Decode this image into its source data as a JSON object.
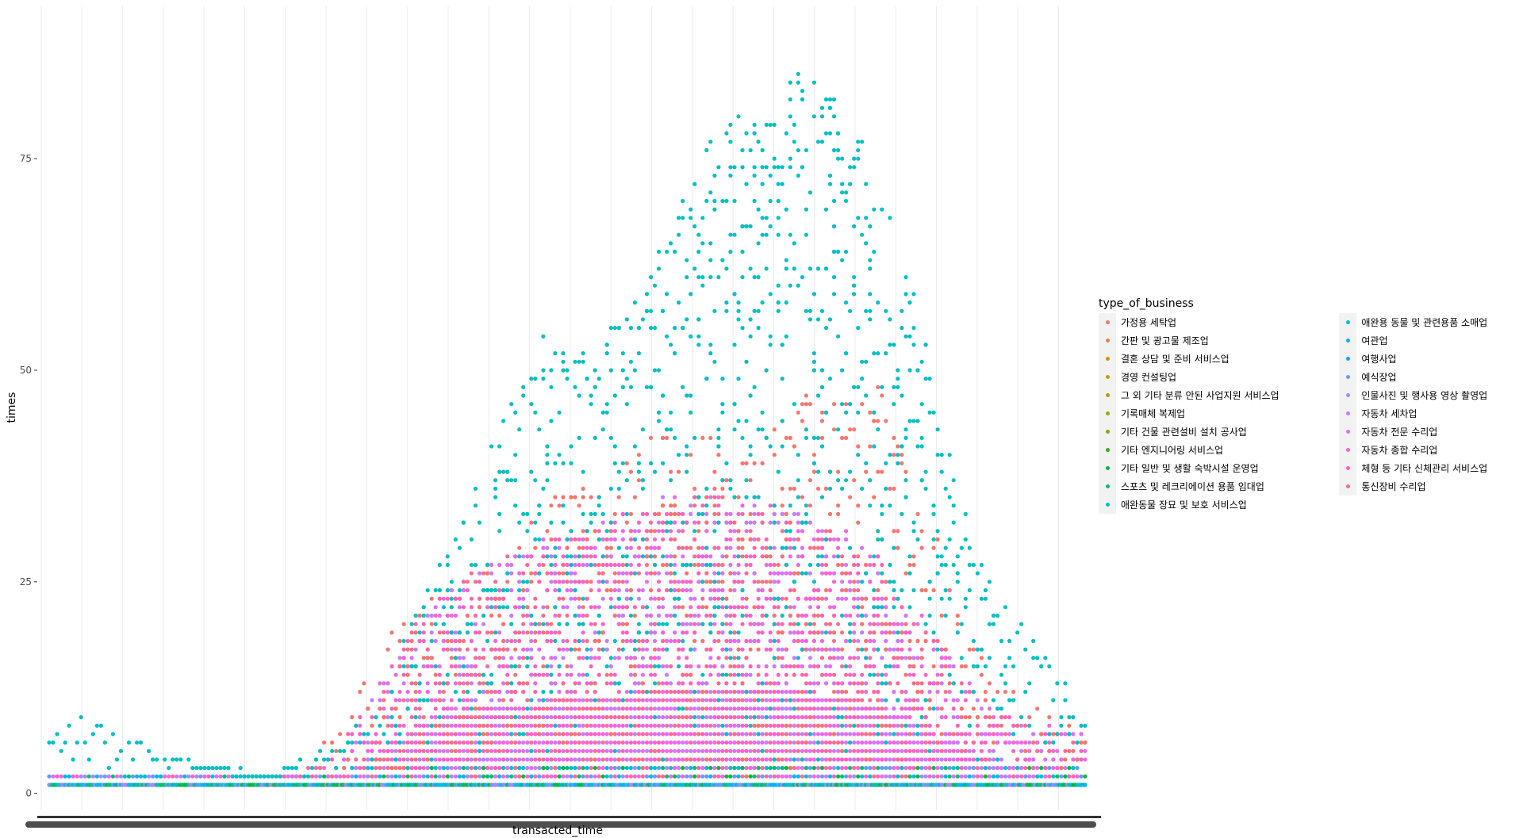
{
  "chart_data": {
    "type": "scatter",
    "xlabel": "transacted_time",
    "ylabel": "times",
    "ylim": [
      -2,
      93
    ],
    "y_ticks": [
      0,
      25,
      50,
      75
    ],
    "y_tick_labels": [
      "0",
      "25",
      "50",
      "75"
    ],
    "x_ticks": "dense, overplotted (unreadable)",
    "grid": true,
    "legend_position": "right",
    "legend_title": "type_of_business",
    "series": [
      {
        "name": "가정용 세탁업",
        "color": "#F8766D"
      },
      {
        "name": "간판 및 광고물 제조업",
        "color": "#EF7F49"
      },
      {
        "name": "결혼 상담 및 준비 서비스업",
        "color": "#E18A00"
      },
      {
        "name": "경영 컨설팅업",
        "color": "#CD9600"
      },
      {
        "name": "그 외 기타 분류 안된 사업지원 서비스업",
        "color": "#B59F00"
      },
      {
        "name": "기록매체 복제업",
        "color": "#9AA800"
      },
      {
        "name": "기타 건물 관련설비 설치 공사업",
        "color": "#74B000"
      },
      {
        "name": "기타 엔지니어링 서비스업",
        "color": "#2DB600"
      },
      {
        "name": "기타 일반 및 생활 숙박시설 운영업",
        "color": "#00BA38"
      },
      {
        "name": "스포츠 및 레크리에이션 용품 임대업",
        "color": "#00BE6B"
      },
      {
        "name": "애완동물 장묘 및 보호 서비스업",
        "color": "#00BFC4"
      },
      {
        "name": "애완용 동물 및 관련용품 소매업",
        "color": "#00BBDA"
      },
      {
        "name": "여관업",
        "color": "#00B4EF"
      },
      {
        "name": "여행사업",
        "color": "#00A9FF"
      },
      {
        "name": "예식장업",
        "color": "#619CFF"
      },
      {
        "name": "인물사진 및 행사용 영상 촬영업",
        "color": "#9F8CFF"
      },
      {
        "name": "자동차 세차업",
        "color": "#C77CFF"
      },
      {
        "name": "자동차 전문 수리업",
        "color": "#E76BF3"
      },
      {
        "name": "자동차 종합 수리업",
        "color": "#FA62DB"
      },
      {
        "name": "체형 등 기타 신체관리 서비스업",
        "color": "#FF62BC"
      },
      {
        "name": "통신장비 수리업",
        "color": "#FF6C91"
      }
    ],
    "envelope": [
      {
        "x": 0.0,
        "teal": 7,
        "red": 1,
        "pink": 1
      },
      {
        "x": 0.02,
        "teal": 9,
        "red": 1,
        "pink": 1
      },
      {
        "x": 0.04,
        "teal": 10,
        "red": 1,
        "pink": 1
      },
      {
        "x": 0.07,
        "teal": 7,
        "red": 1,
        "pink": 1
      },
      {
        "x": 0.1,
        "teal": 6,
        "red": 1,
        "pink": 1
      },
      {
        "x": 0.13,
        "teal": 4,
        "red": 1,
        "pink": 1
      },
      {
        "x": 0.17,
        "teal": 3,
        "red": 1,
        "pink": 1
      },
      {
        "x": 0.21,
        "teal": 2,
        "red": 1,
        "pink": 1
      },
      {
        "x": 0.24,
        "teal": 4,
        "red": 3,
        "pink": 2
      },
      {
        "x": 0.28,
        "teal": 6,
        "red": 8,
        "pink": 5
      },
      {
        "x": 0.32,
        "teal": 10,
        "red": 17,
        "pink": 13
      },
      {
        "x": 0.36,
        "teal": 24,
        "red": 25,
        "pink": 22
      },
      {
        "x": 0.4,
        "teal": 33,
        "red": 25,
        "pink": 26
      },
      {
        "x": 0.44,
        "teal": 45,
        "red": 29,
        "pink": 28
      },
      {
        "x": 0.48,
        "teal": 55,
        "red": 34,
        "pink": 30
      },
      {
        "x": 0.52,
        "teal": 52,
        "red": 37,
        "pink": 31
      },
      {
        "x": 0.56,
        "teal": 57,
        "red": 40,
        "pink": 33
      },
      {
        "x": 0.6,
        "teal": 68,
        "red": 44,
        "pink": 35
      },
      {
        "x": 0.64,
        "teal": 80,
        "red": 42,
        "pink": 35
      },
      {
        "x": 0.68,
        "teal": 80,
        "red": 40,
        "pink": 34
      },
      {
        "x": 0.72,
        "teal": 86,
        "red": 47,
        "pink": 33
      },
      {
        "x": 0.76,
        "teal": 82,
        "red": 47,
        "pink": 32
      },
      {
        "x": 0.8,
        "teal": 75,
        "red": 49,
        "pink": 28
      },
      {
        "x": 0.84,
        "teal": 58,
        "red": 37,
        "pink": 22
      },
      {
        "x": 0.88,
        "teal": 34,
        "red": 22,
        "pink": 14
      },
      {
        "x": 0.92,
        "teal": 23,
        "red": 13,
        "pink": 9
      },
      {
        "x": 0.96,
        "teal": 17,
        "red": 9,
        "pink": 8
      },
      {
        "x": 1.0,
        "teal": 10,
        "red": 7,
        "pink": 7
      }
    ]
  }
}
